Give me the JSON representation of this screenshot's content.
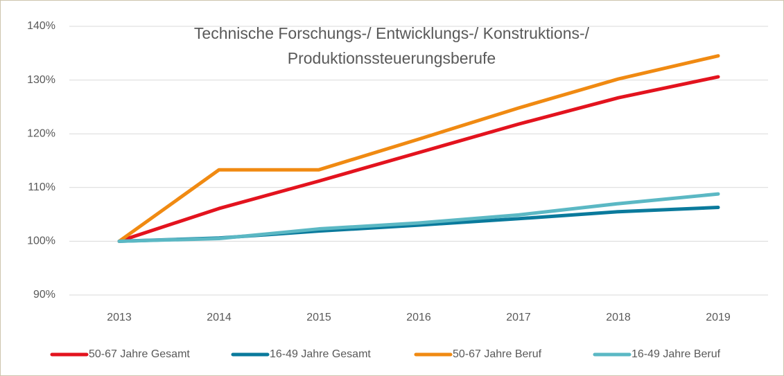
{
  "chart_data": {
    "type": "line",
    "title": "Technische Forschungs-/ Entwicklungs-/ Konstruktions-/ Produktionssteuerungsberufe",
    "categories": [
      "2013",
      "2014",
      "2015",
      "2016",
      "2017",
      "2018",
      "2019"
    ],
    "series": [
      {
        "name": "50-67 Jahre Gesamt",
        "color": "#e3131e",
        "values": [
          100,
          106.1,
          111.2,
          116.5,
          121.8,
          126.7,
          130.6
        ]
      },
      {
        "name": "16-49 Jahre Gesamt",
        "color": "#0a7a9c",
        "values": [
          100,
          100.6,
          101.9,
          103.0,
          104.2,
          105.5,
          106.3
        ]
      },
      {
        "name": "50-67 Jahre Beruf",
        "color": "#f08a12",
        "values": [
          100,
          113.3,
          113.3,
          119.0,
          124.8,
          130.2,
          134.5
        ]
      },
      {
        "name": "16-49 Jahre Beruf",
        "color": "#5bb8c4",
        "values": [
          100,
          100.5,
          102.3,
          103.4,
          104.9,
          107.0,
          108.8
        ]
      }
    ],
    "ylim": [
      90,
      140
    ],
    "yticks": [
      {
        "value": 90,
        "label": "90%"
      },
      {
        "value": 100,
        "label": "100%"
      },
      {
        "value": 110,
        "label": "110%"
      },
      {
        "value": 120,
        "label": "120%"
      },
      {
        "value": 130,
        "label": "130%"
      },
      {
        "value": 140,
        "label": "140%"
      }
    ],
    "grid": true,
    "legend": "bottom"
  }
}
